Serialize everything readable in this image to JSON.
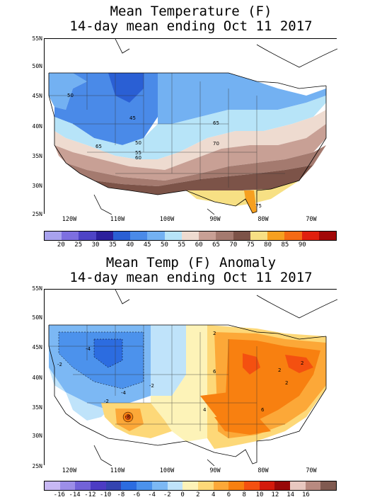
{
  "top_map": {
    "title_line1": "Mean Temperature (F)",
    "title_line2": "14-day mean ending Oct 11 2017",
    "lat_labels": [
      "55N",
      "50N",
      "45N",
      "40N",
      "35N",
      "30N",
      "25N"
    ],
    "lon_labels": [
      "120W",
      "110W",
      "100W",
      "90W",
      "80W",
      "70W"
    ],
    "contour_labels": [
      "50",
      "45",
      "50",
      "55",
      "60",
      "65",
      "65",
      "70"
    ],
    "colorbar_ticks": [
      "20",
      "25",
      "30",
      "35",
      "40",
      "45",
      "50",
      "55",
      "60",
      "65",
      "70",
      "75",
      "80",
      "85",
      "90"
    ],
    "colorbar_colors": [
      "#a8a2ee",
      "#7d6fe0",
      "#4e44c6",
      "#2c209c",
      "#2a5fd4",
      "#4a8ae8",
      "#73b1f2",
      "#b7e4f8",
      "#eedbd0",
      "#c8a095",
      "#a47a6f",
      "#7c5348",
      "#f7e084",
      "#f6a020",
      "#f56a14",
      "#e0200e",
      "#a20808"
    ],
    "stat": {
      "fl_label": "75"
    }
  },
  "bottom_map": {
    "title_line1": "Mean Temp (F) Anomaly",
    "title_line2": "14-day mean ending Oct 11 2017",
    "lat_labels": [
      "55N",
      "50N",
      "45N",
      "40N",
      "35N",
      "30N",
      "25N"
    ],
    "lon_labels": [
      "120W",
      "110W",
      "100W",
      "90W",
      "80W",
      "70W"
    ],
    "contour_labels": [
      "-2",
      "-4",
      "-2",
      "-4",
      "-2",
      "2",
      "2",
      "2",
      "-8",
      "4",
      "6",
      "6",
      "2"
    ],
    "colorbar_ticks": [
      "-16",
      "-14",
      "-12",
      "-10",
      "-8",
      "-6",
      "-4",
      "-2",
      "0",
      "2",
      "4",
      "6",
      "8",
      "10",
      "12",
      "14",
      "16"
    ],
    "colorbar_colors": [
      "#c8b8f4",
      "#9c8ee8",
      "#7262d8",
      "#4c3cc4",
      "#3444b0",
      "#2c6ce0",
      "#4c92ec",
      "#7cb8f4",
      "#bfe3fa",
      "#fdf3b8",
      "#fdd878",
      "#fca838",
      "#f88010",
      "#f45010",
      "#d41a0c",
      "#980808",
      "#e8c8c0",
      "#b88a80",
      "#805a50"
    ]
  }
}
